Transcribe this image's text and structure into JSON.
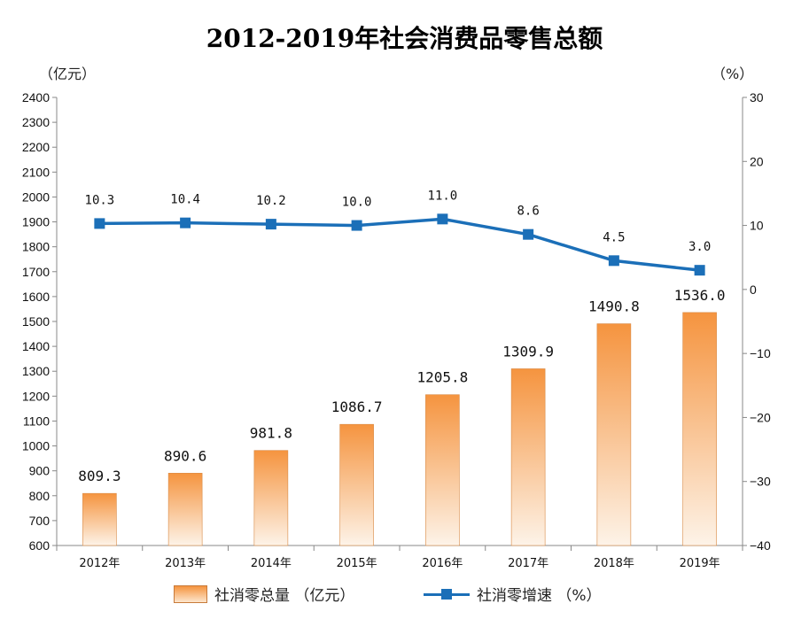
{
  "title": "2012-2019年社会消费品零售总额",
  "units": {
    "left": "（亿元）",
    "right": "（%）"
  },
  "legend": {
    "bar_label": "社消零总量 （亿元）",
    "line_label": "社消零增速 （%）"
  },
  "colors": {
    "bar_top": "#f5943f",
    "bar_bottom": "#fdf3e8",
    "line": "#1b6fb8",
    "axis": "#888888"
  },
  "chart_data": {
    "type": "bar",
    "categories": [
      "2012年",
      "2013年",
      "2014年",
      "2015年",
      "2016年",
      "2017年",
      "2018年",
      "2019年"
    ],
    "series": [
      {
        "name": "社消零总量 （亿元）",
        "type": "bar",
        "axis": "left",
        "values": [
          809.3,
          890.6,
          981.8,
          1086.7,
          1205.8,
          1309.9,
          1490.8,
          1536.0
        ],
        "labels": [
          "809.3",
          "890.6",
          "981.8",
          "1086.7",
          "1205.8",
          "1309.9",
          "1490.8",
          "1536.0"
        ]
      },
      {
        "name": "社消零增速 （%）",
        "type": "line",
        "axis": "right",
        "values": [
          10.3,
          10.4,
          10.2,
          10.0,
          11.0,
          8.6,
          4.5,
          3.0
        ],
        "labels": [
          "10.3",
          "10.4",
          "10.2",
          "10.0",
          "11.0",
          "8.6",
          "4.5",
          "3.0"
        ]
      }
    ],
    "y_left": {
      "min": 600,
      "max": 2400,
      "step": 100,
      "ticks": [
        "600",
        "700",
        "800",
        "900",
        "1000",
        "1100",
        "1200",
        "1300",
        "1400",
        "1500",
        "1600",
        "1700",
        "1800",
        "1900",
        "2000",
        "2100",
        "2200",
        "2300",
        "2400"
      ]
    },
    "y_right": {
      "min": -40,
      "max": 30,
      "step": 10,
      "ticks": [
        "-40",
        "-30",
        "-20",
        "-10",
        "0",
        "10",
        "20",
        "30"
      ]
    },
    "grid": false,
    "legend_position": "bottom"
  }
}
